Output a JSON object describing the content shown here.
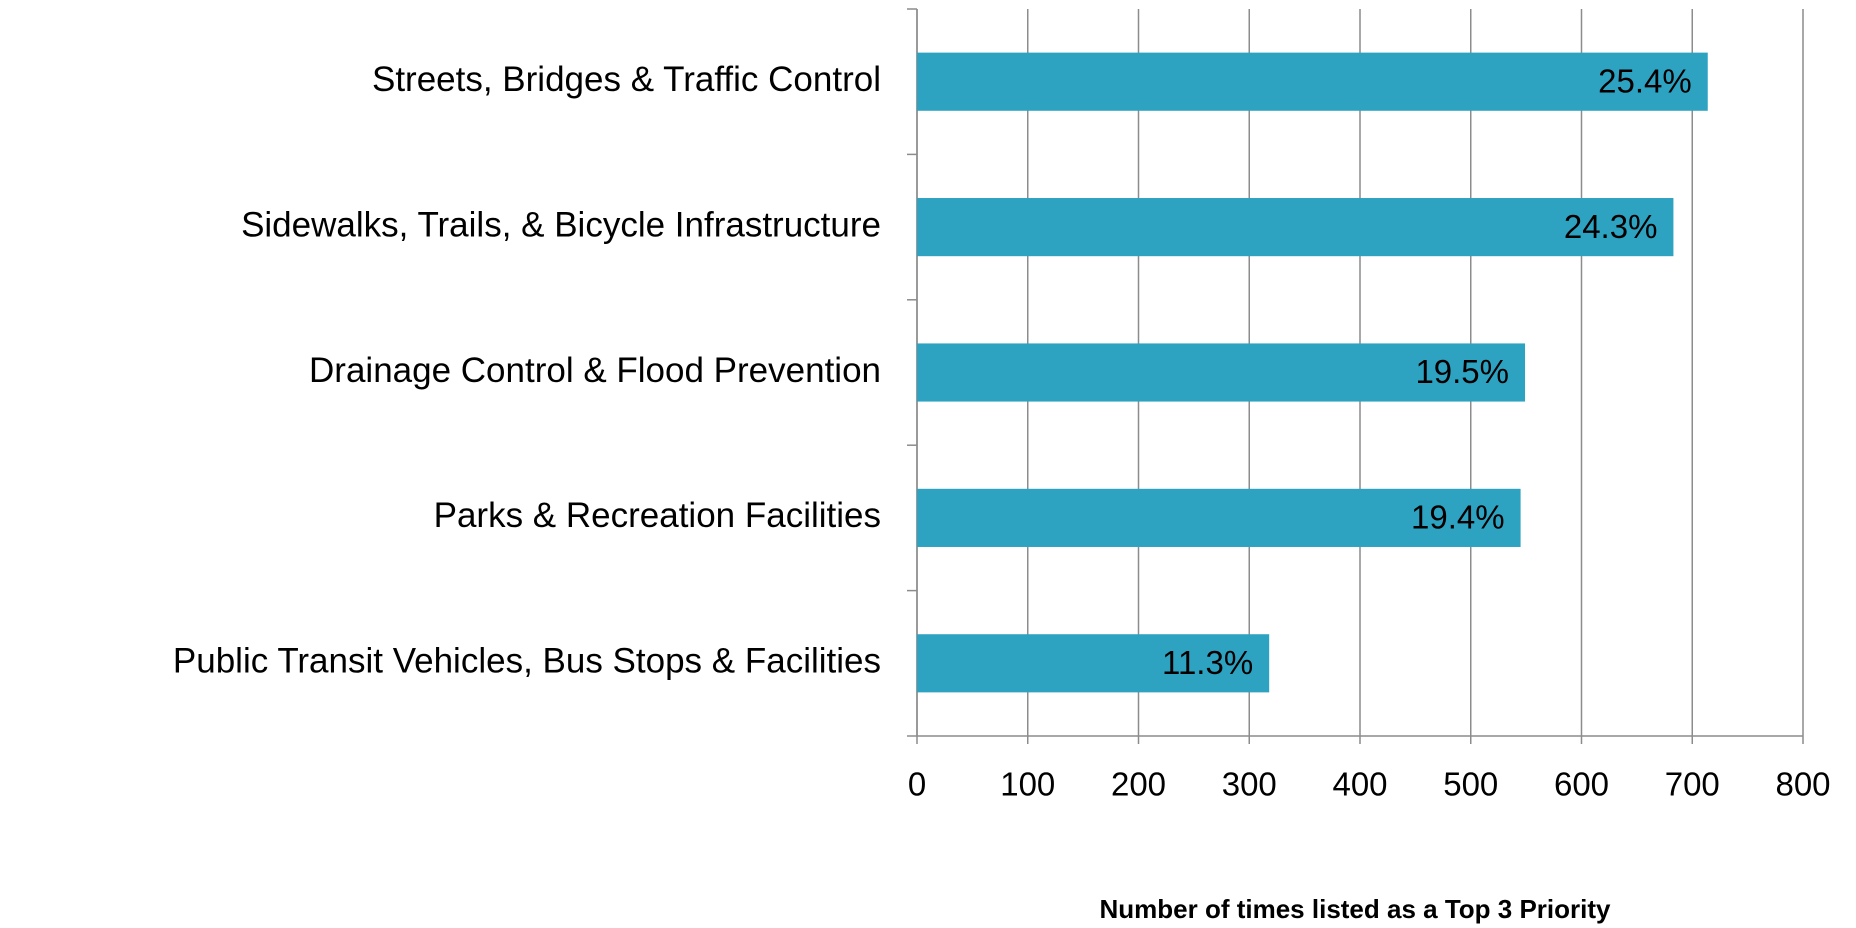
{
  "chart_data": {
    "type": "bar",
    "orientation": "horizontal",
    "x_label": "Number of times listed as a Top 3 Priority",
    "categories": [
      "Streets, Bridges & Traffic Control",
      "Sidewalks, Trails, & Bicycle Infrastructure",
      "Drainage Control & Flood Prevention",
      "Parks & Recreation Facilities",
      "Public Transit Vehicles, Bus Stops & Facilities"
    ],
    "values": [
      714,
      683,
      549,
      545,
      318
    ],
    "value_labels": [
      "25.4%",
      "24.3%",
      "19.5%",
      "19.4%",
      "11.3%"
    ],
    "color": "#2ea3c1",
    "xlim": [
      0,
      800
    ],
    "xticks": [
      0,
      100,
      200,
      300,
      400,
      500,
      600,
      700,
      800
    ],
    "grid": true
  }
}
